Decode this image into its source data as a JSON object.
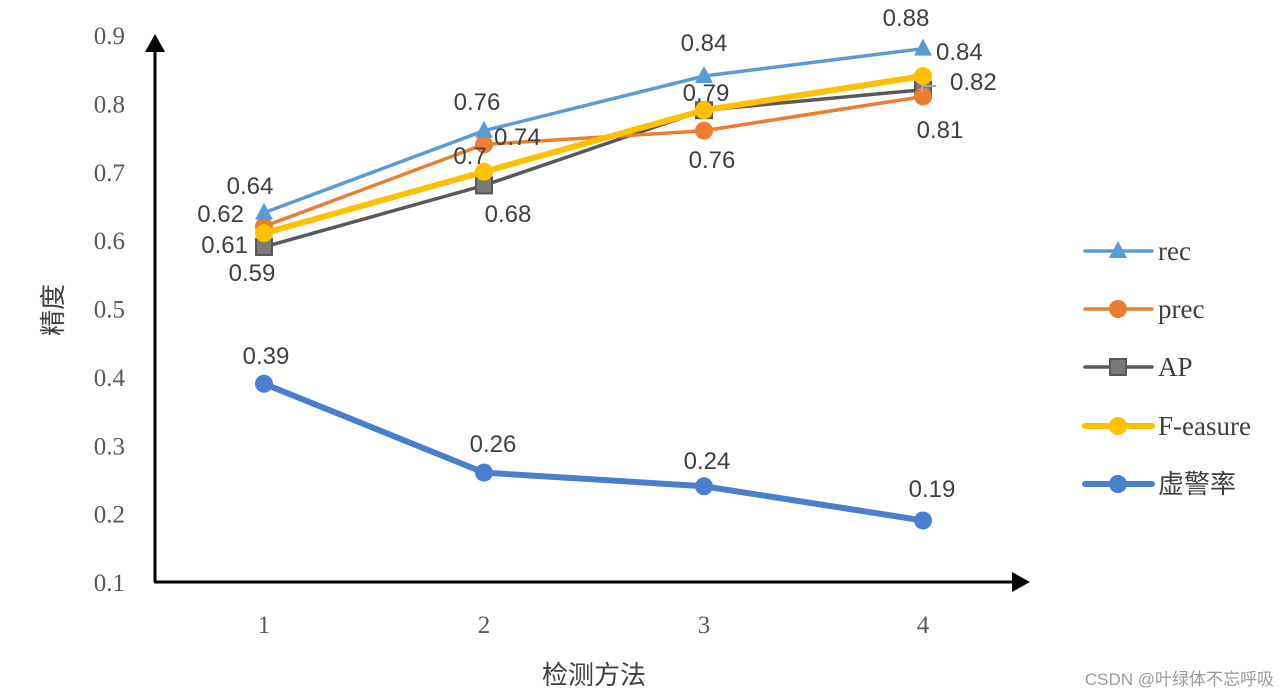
{
  "chart_data": {
    "type": "line",
    "title": "",
    "xlabel": "检测方法",
    "ylabel": "精度",
    "categories": [
      "1",
      "2",
      "3",
      "4"
    ],
    "ylim": [
      0.1,
      0.9
    ],
    "yticks": [
      "0.9",
      "0.8",
      "0.7",
      "0.6",
      "0.5",
      "0.4",
      "0.3",
      "0.2",
      "0.1"
    ],
    "grid": false,
    "legend_position": "right",
    "series": [
      {
        "name": "rec",
        "values": [
          0.64,
          0.76,
          0.84,
          0.88
        ],
        "color": "#5B9BD5",
        "marker": "triangle"
      },
      {
        "name": "prec",
        "values": [
          0.62,
          0.74,
          0.76,
          0.81
        ],
        "color": "#ED7D31",
        "marker": "circle"
      },
      {
        "name": "AP",
        "values": [
          0.59,
          0.68,
          0.79,
          0.82
        ],
        "color": "#595959",
        "marker": "square"
      },
      {
        "name": "F-easure",
        "values": [
          0.61,
          0.7,
          0.79,
          0.84
        ],
        "color": "#FFC000",
        "marker": "circle"
      },
      {
        "name": "虚警率",
        "values": [
          0.39,
          0.26,
          0.24,
          0.19
        ],
        "color": "#4A7FD0",
        "marker": "circle"
      }
    ],
    "data_labels": {
      "rec": [
        "0.64",
        "0.76",
        "0.84",
        "0.88"
      ],
      "prec": [
        "0.62",
        "0.74",
        "0.76",
        "0.81"
      ],
      "AP": [
        "0.59",
        "0.68",
        "0.79",
        "0.82"
      ],
      "F-easure": [
        "0.61",
        "0.7",
        "0.79",
        "0.84"
      ],
      "虚警率": [
        "0.39",
        "0.26",
        "0.24",
        "0.19"
      ]
    }
  },
  "watermark": "CSDN @叶绿体不忘呼吸"
}
